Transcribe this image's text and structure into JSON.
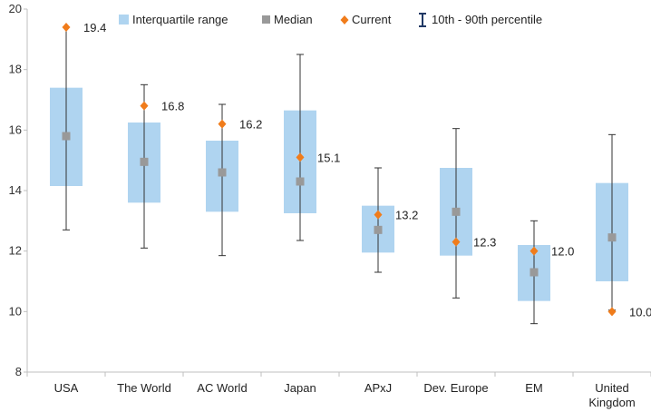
{
  "chart_data": {
    "type": "box-range",
    "categories": [
      [
        "USA"
      ],
      [
        "The World"
      ],
      [
        "AC World"
      ],
      [
        "Japan"
      ],
      [
        "APxJ"
      ],
      [
        "Dev. Europe"
      ],
      [
        "EM"
      ],
      [
        "United",
        "Kingdom"
      ]
    ],
    "p10": [
      12.7,
      12.1,
      11.85,
      12.35,
      11.3,
      10.45,
      9.6,
      10.05
    ],
    "q1": [
      14.15,
      13.6,
      13.3,
      13.25,
      11.95,
      11.85,
      10.35,
      11.0
    ],
    "median": [
      15.8,
      14.95,
      14.6,
      14.3,
      12.7,
      13.3,
      11.3,
      12.45
    ],
    "q3": [
      17.4,
      16.25,
      15.65,
      16.65,
      13.5,
      14.75,
      12.2,
      14.25
    ],
    "p90": [
      19.4,
      17.5,
      16.85,
      18.5,
      14.75,
      16.05,
      13.0,
      15.85
    ],
    "current": [
      19.4,
      16.8,
      16.2,
      15.1,
      13.2,
      12.3,
      12.0,
      10.0
    ],
    "current_labels": [
      "19.4",
      "16.8",
      "16.2",
      "15.1",
      "13.2",
      "12.3",
      "12.0",
      "10.0"
    ],
    "ylim": [
      8,
      20
    ],
    "yticks": [
      "8",
      "10",
      "12",
      "14",
      "16",
      "18",
      "20"
    ],
    "title": "",
    "xlabel": "",
    "ylabel": "",
    "legend": {
      "position": "top",
      "items": [
        {
          "key": "iqr",
          "label": "Interquartile range"
        },
        {
          "key": "median",
          "label": "Median"
        },
        {
          "key": "current",
          "label": "Current"
        },
        {
          "key": "range",
          "label": "10th - 90th percentile"
        }
      ]
    },
    "colors": {
      "iqr": "#afd4f0",
      "median": "#999999",
      "current": "#f07c1b",
      "whisker": "#333333",
      "legend_range": "#1f3864",
      "axis": "#bfbfbf"
    }
  }
}
